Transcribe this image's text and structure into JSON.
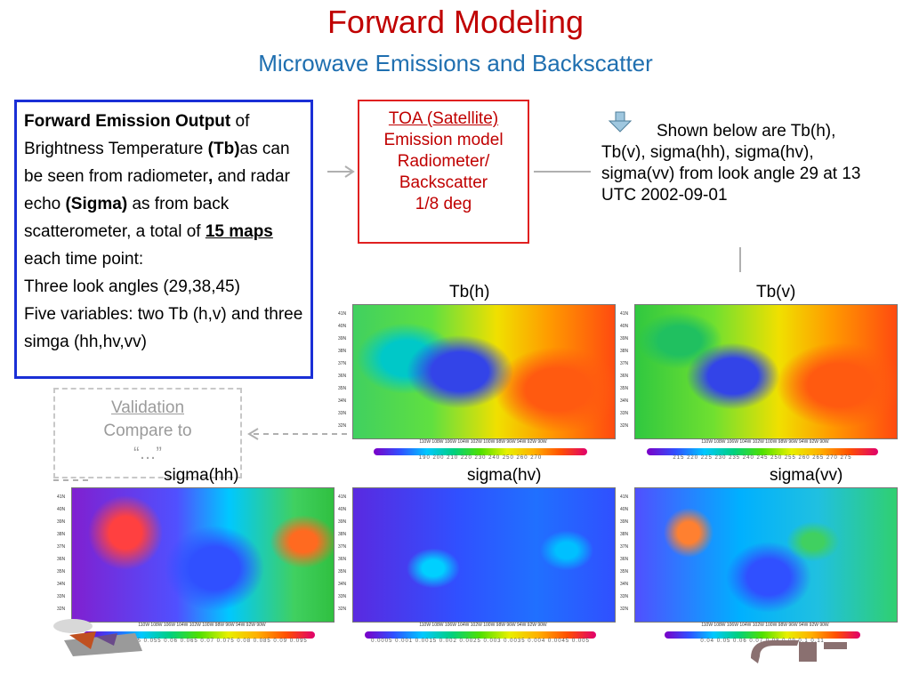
{
  "title": "Forward Modeling",
  "subtitle": "Microwave Emissions and Backscatter",
  "output_box": {
    "heading": "Forward Emission Output",
    "text1": " of Brightness Temperature ",
    "tb": "(Tb)",
    "text2": "as can be seen from radiometer",
    "comma": ",",
    "text3": " and radar echo ",
    "sigma": "(Sigma)",
    "text4": " as from back scatterometer, a total of ",
    "count": "15 maps",
    "text5": " each time point:",
    "line_angles": "Three look angles (29,38,45)",
    "line_vars": "Five variables: two Tb (h,v) and three simga (hh,hv,vv)"
  },
  "toa_box": {
    "title": "TOA  (Satellite)",
    "line1": "Emission model",
    "line2": "Radiometer/",
    "line3": "Backscatter",
    "line4": "1/8 deg"
  },
  "shown_text": "Shown below are Tb(h), Tb(v), sigma(hh), sigma(hv), sigma(vv) from look angle 29 at 13 UTC 2002-09-01",
  "validation_box": {
    "title": "Validation",
    "line1": "Compare to",
    "line2": "“…”"
  },
  "maps": [
    {
      "label": "Tb(h)",
      "ticks": "190  200  210  220  230  240  250  260  270"
    },
    {
      "label": "Tb(v)",
      "ticks": "215  220  225  230  235  240  245  250  255  260  265  270  275"
    },
    {
      "label": "sigma(hh)",
      "ticks": "0.04  0.045  0.05  0.055  0.06  0.065  0.07  0.075  0.08  0.085  0.09  0.095"
    },
    {
      "label": "sigma(hv)",
      "ticks": "0.0005  0.001  0.0015  0.002  0.0025  0.003  0.0035  0.004  0.0045  0.005"
    },
    {
      "label": "sigma(vv)",
      "ticks": "0.04  0.05  0.06  0.07  0.08  0.09  0.1  0.11"
    }
  ],
  "lat_labels": [
    "41N",
    "40N",
    "39N",
    "38N",
    "37N",
    "36N",
    "35N",
    "34N",
    "33N",
    "32N"
  ],
  "lon_labels": "110W  108W  106W  104W  102W  100W  98W  96W  94W  92W  90W",
  "colors": {
    "title": "#c00000",
    "subtitle": "#1f6fb0",
    "output_border": "#1a2fd6",
    "toa_border": "#e02020",
    "validation_border": "#c8c8c8"
  }
}
